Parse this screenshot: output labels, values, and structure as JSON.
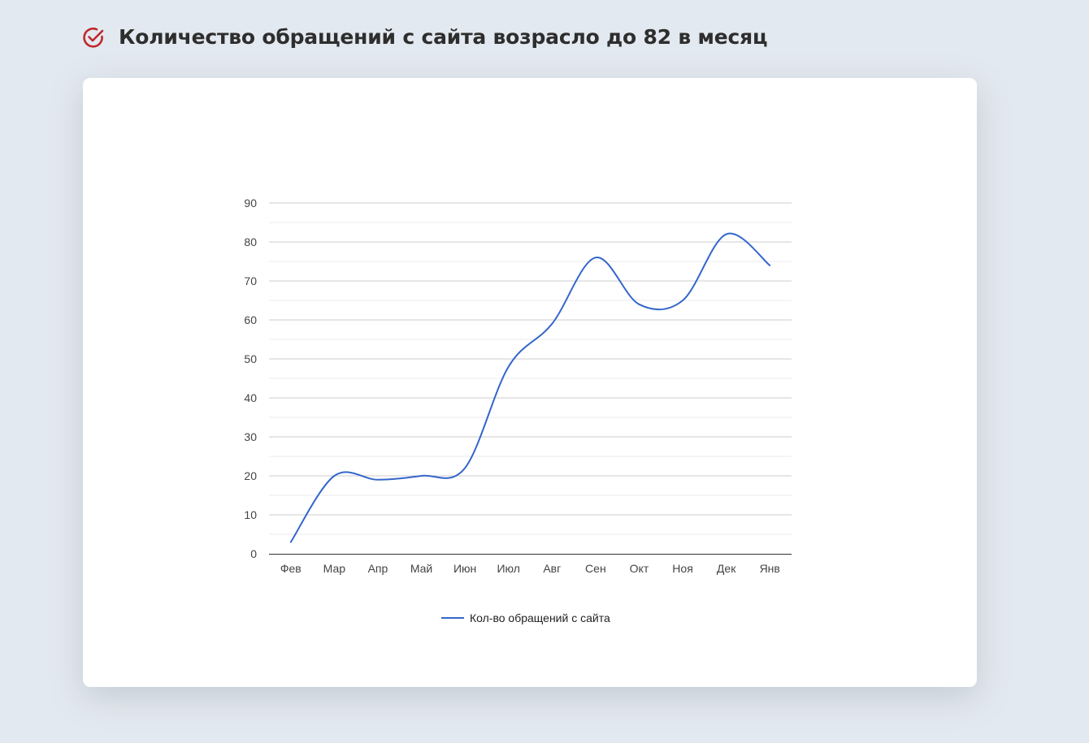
{
  "heading": {
    "title": "Количество обращений с сайта возрасло до 82 в месяц",
    "icon": "check-circle-icon",
    "icon_color": "#c0282d"
  },
  "chart_data": {
    "type": "line",
    "categories": [
      "Фев",
      "Мар",
      "Апр",
      "Май",
      "Июн",
      "Июл",
      "Авг",
      "Сен",
      "Окт",
      "Ноя",
      "Дек",
      "Янв"
    ],
    "series": [
      {
        "name": "Кол-во обращений с сайта",
        "values": [
          3,
          20,
          19,
          20,
          22,
          48,
          59,
          76,
          64,
          65,
          82,
          74
        ],
        "color": "#3366cc"
      }
    ],
    "ylim": [
      0,
      90
    ],
    "yticks": [
      0,
      10,
      20,
      30,
      40,
      50,
      60,
      70,
      80,
      90
    ],
    "grid": true,
    "minor_grid": true,
    "legend": "bottom",
    "smooth": true,
    "title": "",
    "xlabel": "",
    "ylabel": ""
  }
}
